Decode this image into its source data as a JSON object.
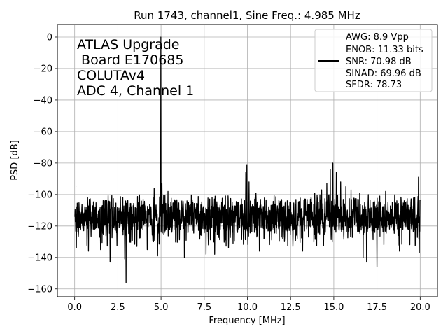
{
  "chart_data": {
    "type": "line",
    "title": "Run 1743, channel1, Sine Freq.: 4.985 MHz",
    "xlabel": "Frequency [MHz]",
    "ylabel": "PSD [dB]",
    "xlim": [
      -1.0,
      21.0
    ],
    "ylim": [
      -165,
      8
    ],
    "xticks": [
      0.0,
      2.5,
      5.0,
      7.5,
      10.0,
      12.5,
      15.0,
      17.5,
      20.0
    ],
    "xtick_labels": [
      "0.0",
      "2.5",
      "5.0",
      "7.5",
      "10.0",
      "12.5",
      "15.0",
      "17.5",
      "20.0"
    ],
    "yticks": [
      0,
      -20,
      -40,
      -60,
      -80,
      -100,
      -120,
      -140,
      -160
    ],
    "ytick_labels": [
      "0",
      "−20",
      "−40",
      "−60",
      "−80",
      "−100",
      "−120",
      "−140",
      "−160"
    ],
    "grid": true,
    "annotation_lines": [
      "ATLAS Upgrade",
      " Board E170685",
      "COLUTAv4",
      "ADC 4, Channel 1"
    ],
    "legend": {
      "location": "top-right",
      "lines": [
        "AWG: 8.9 Vpp",
        "ENOB: 11.33 bits",
        "SNR: 70.98 dB",
        "SINAD: 69.96 dB",
        "SFDR: 78.73"
      ]
    },
    "series": [
      {
        "name": "PSD",
        "color": "#000000",
        "noise_floor_db": -114,
        "noise_band_db": [
          -125,
          -103
        ],
        "peaks": [
          {
            "x": 4.985,
            "y": 0
          },
          {
            "x": 4.95,
            "y": -88
          },
          {
            "x": 5.05,
            "y": -93
          },
          {
            "x": 4.6,
            "y": -96
          },
          {
            "x": 5.4,
            "y": -98
          },
          {
            "x": 9.97,
            "y": -81
          },
          {
            "x": 9.9,
            "y": -86
          },
          {
            "x": 10.1,
            "y": -92
          },
          {
            "x": 10.5,
            "y": -99
          },
          {
            "x": 14.95,
            "y": -80
          },
          {
            "x": 14.8,
            "y": -84
          },
          {
            "x": 15.15,
            "y": -86
          },
          {
            "x": 15.4,
            "y": -92
          },
          {
            "x": 15.7,
            "y": -95
          },
          {
            "x": 16.0,
            "y": -97
          },
          {
            "x": 14.6,
            "y": -93
          },
          {
            "x": 14.3,
            "y": -97
          },
          {
            "x": 13.9,
            "y": -99
          },
          {
            "x": 16.5,
            "y": -99
          },
          {
            "x": 17.0,
            "y": -100
          },
          {
            "x": 18.0,
            "y": -98
          },
          {
            "x": 19.9,
            "y": -89
          },
          {
            "x": 0.1,
            "y": -95
          },
          {
            "x": 0.75,
            "y": -102
          },
          {
            "x": 0.85,
            "y": -103
          }
        ],
        "dips": [
          {
            "x": 0.1,
            "y": -134
          },
          {
            "x": 0.8,
            "y": -136
          },
          {
            "x": 1.5,
            "y": -135
          },
          {
            "x": 2.05,
            "y": -143
          },
          {
            "x": 2.9,
            "y": -141
          },
          {
            "x": 2.98,
            "y": -156
          },
          {
            "x": 3.6,
            "y": -133
          },
          {
            "x": 4.2,
            "y": -135
          },
          {
            "x": 4.8,
            "y": -139
          },
          {
            "x": 6.35,
            "y": -140
          },
          {
            "x": 7.6,
            "y": -138
          },
          {
            "x": 8.1,
            "y": -138
          },
          {
            "x": 8.9,
            "y": -134
          },
          {
            "x": 10.7,
            "y": -136
          },
          {
            "x": 13.2,
            "y": -136
          },
          {
            "x": 16.7,
            "y": -140
          },
          {
            "x": 16.9,
            "y": -143
          },
          {
            "x": 17.5,
            "y": -146
          },
          {
            "x": 18.8,
            "y": -136
          },
          {
            "x": 19.95,
            "y": -137
          }
        ]
      }
    ]
  }
}
